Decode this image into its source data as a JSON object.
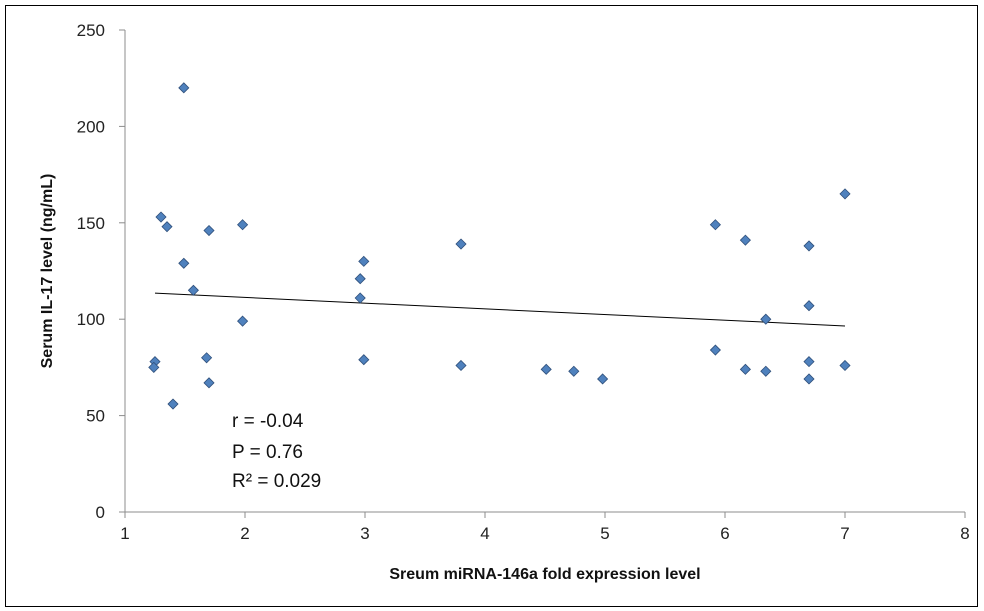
{
  "chart_data": {
    "type": "scatter",
    "title": "",
    "xlabel": "Sreum miRNA-146a fold expression level",
    "ylabel": "Serum IL-17 level (ng/mL)",
    "xlim": [
      1,
      8
    ],
    "ylim": [
      0,
      250
    ],
    "x_ticks": [
      "1",
      "2",
      "3",
      "4",
      "5",
      "6",
      "7",
      "8"
    ],
    "y_ticks": [
      "0",
      "50",
      "100",
      "150",
      "200",
      "250"
    ],
    "grid": false,
    "legend": "none",
    "marker_color": "#4F81BD",
    "marker_edge_color": "#2F4F7A",
    "trendline": {
      "type": "linear",
      "x": [
        1.25,
        7.0
      ],
      "y": [
        113.5,
        96.5
      ],
      "color": "#000000"
    },
    "annotations": [
      "r = -0.04",
      "P = 0.76",
      "R² = 0.029"
    ],
    "points": [
      {
        "x": 1.49,
        "y": 220
      },
      {
        "x": 1.3,
        "y": 153
      },
      {
        "x": 1.35,
        "y": 148
      },
      {
        "x": 1.7,
        "y": 146
      },
      {
        "x": 1.98,
        "y": 149
      },
      {
        "x": 1.49,
        "y": 129
      },
      {
        "x": 1.57,
        "y": 115
      },
      {
        "x": 1.98,
        "y": 99
      },
      {
        "x": 1.68,
        "y": 80
      },
      {
        "x": 1.25,
        "y": 78
      },
      {
        "x": 1.24,
        "y": 75
      },
      {
        "x": 1.7,
        "y": 67
      },
      {
        "x": 1.4,
        "y": 56
      },
      {
        "x": 2.96,
        "y": 121
      },
      {
        "x": 2.99,
        "y": 130
      },
      {
        "x": 2.96,
        "y": 111
      },
      {
        "x": 2.99,
        "y": 79
      },
      {
        "x": 3.8,
        "y": 139
      },
      {
        "x": 3.8,
        "y": 76
      },
      {
        "x": 4.51,
        "y": 74
      },
      {
        "x": 4.74,
        "y": 73
      },
      {
        "x": 4.98,
        "y": 69
      },
      {
        "x": 5.92,
        "y": 149
      },
      {
        "x": 5.92,
        "y": 84
      },
      {
        "x": 6.17,
        "y": 141
      },
      {
        "x": 6.17,
        "y": 74
      },
      {
        "x": 6.34,
        "y": 100
      },
      {
        "x": 6.34,
        "y": 73
      },
      {
        "x": 6.7,
        "y": 138
      },
      {
        "x": 6.7,
        "y": 107
      },
      {
        "x": 6.7,
        "y": 78
      },
      {
        "x": 6.7,
        "y": 69
      },
      {
        "x": 7.0,
        "y": 165
      },
      {
        "x": 7.0,
        "y": 76
      }
    ]
  }
}
